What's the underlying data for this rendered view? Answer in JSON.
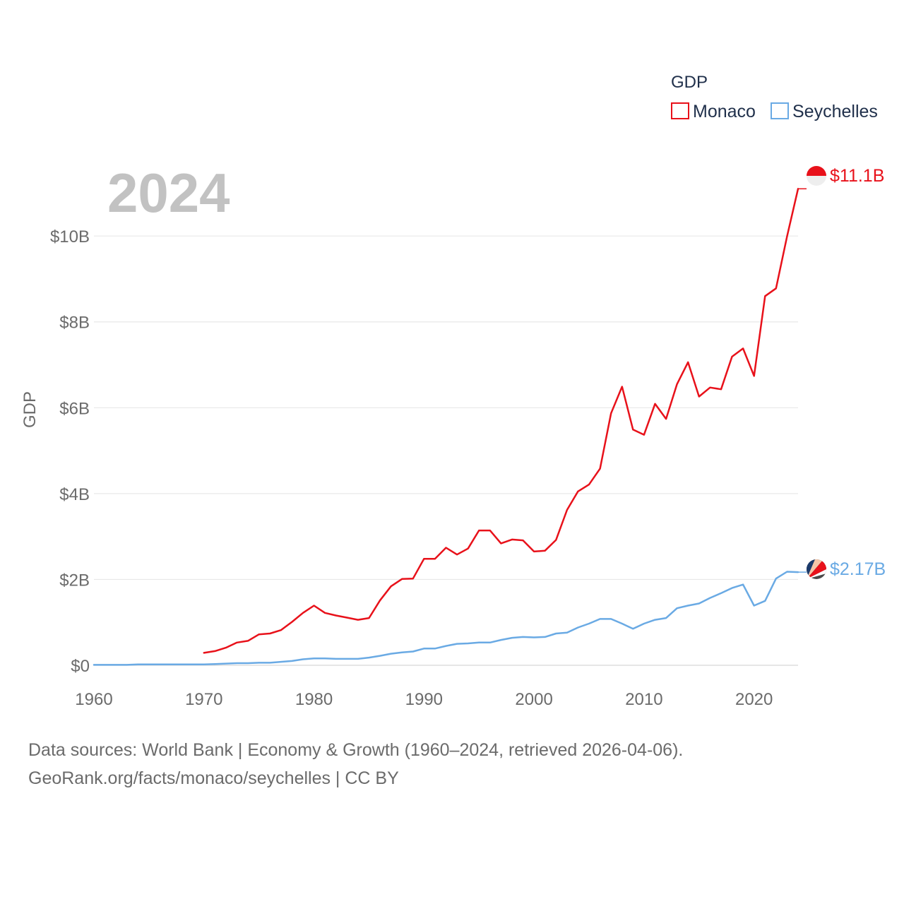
{
  "chart_data": {
    "type": "line",
    "year_label": "2024",
    "ylabel": "GDP",
    "legend_title": "GDP",
    "legend_position": "top-right",
    "x_ticks": [
      "1960",
      "1970",
      "1980",
      "1990",
      "2000",
      "2010",
      "2020"
    ],
    "x_tick_values": [
      1960,
      1970,
      1980,
      1990,
      2000,
      2010,
      2020
    ],
    "xlim": [
      1960,
      2024
    ],
    "y_ticks": [
      "$0",
      "$2B",
      "$4B",
      "$6B",
      "$8B",
      "$10B"
    ],
    "y_tick_values": [
      0,
      2,
      4,
      6,
      8,
      10
    ],
    "ylim": [
      0,
      11.5
    ],
    "grid": true,
    "series": [
      {
        "name": "Monaco",
        "color": "#e8111a",
        "end_label": "$11.1B",
        "x": [
          1970,
          1971,
          1972,
          1973,
          1974,
          1975,
          1976,
          1977,
          1978,
          1979,
          1980,
          1981,
          1982,
          1983,
          1984,
          1985,
          1986,
          1987,
          1988,
          1989,
          1990,
          1991,
          1992,
          1993,
          1994,
          1995,
          1996,
          1997,
          1998,
          1999,
          2000,
          2001,
          2002,
          2003,
          2004,
          2005,
          2006,
          2007,
          2008,
          2009,
          2010,
          2011,
          2012,
          2013,
          2014,
          2015,
          2016,
          2017,
          2018,
          2019,
          2020,
          2021,
          2022,
          2023,
          2024
        ],
        "values": [
          0.29,
          0.33,
          0.41,
          0.53,
          0.57,
          0.72,
          0.74,
          0.82,
          1.01,
          1.22,
          1.39,
          1.22,
          1.16,
          1.11,
          1.06,
          1.1,
          1.51,
          1.84,
          2.01,
          2.02,
          2.48,
          2.48,
          2.74,
          2.58,
          2.72,
          3.14,
          3.14,
          2.84,
          2.93,
          2.91,
          2.65,
          2.67,
          2.92,
          3.62,
          4.05,
          4.21,
          4.58,
          5.87,
          6.49,
          5.49,
          5.37,
          6.09,
          5.74,
          6.55,
          7.06,
          6.26,
          6.47,
          6.43,
          7.19,
          7.38,
          6.74,
          8.6,
          8.78,
          9.99,
          11.1
        ]
      },
      {
        "name": "Seychelles",
        "color": "#6aaae4",
        "end_label": "$2.17B",
        "x": [
          1960,
          1961,
          1962,
          1963,
          1964,
          1965,
          1966,
          1967,
          1968,
          1969,
          1970,
          1971,
          1972,
          1973,
          1974,
          1975,
          1976,
          1977,
          1978,
          1979,
          1980,
          1981,
          1982,
          1983,
          1984,
          1985,
          1986,
          1987,
          1988,
          1989,
          1990,
          1991,
          1992,
          1993,
          1994,
          1995,
          1996,
          1997,
          1998,
          1999,
          2000,
          2001,
          2002,
          2003,
          2004,
          2005,
          2006,
          2007,
          2008,
          2009,
          2010,
          2011,
          2012,
          2013,
          2014,
          2015,
          2016,
          2017,
          2018,
          2019,
          2020,
          2021,
          2022,
          2023,
          2024
        ],
        "values": [
          0.01,
          0.01,
          0.01,
          0.01,
          0.02,
          0.02,
          0.02,
          0.02,
          0.02,
          0.02,
          0.02,
          0.03,
          0.04,
          0.05,
          0.05,
          0.06,
          0.06,
          0.08,
          0.1,
          0.14,
          0.16,
          0.16,
          0.15,
          0.15,
          0.15,
          0.18,
          0.22,
          0.27,
          0.3,
          0.32,
          0.39,
          0.39,
          0.45,
          0.5,
          0.51,
          0.53,
          0.53,
          0.59,
          0.64,
          0.66,
          0.65,
          0.66,
          0.74,
          0.76,
          0.88,
          0.97,
          1.08,
          1.08,
          0.97,
          0.85,
          0.97,
          1.06,
          1.1,
          1.33,
          1.39,
          1.44,
          1.57,
          1.68,
          1.8,
          1.88,
          1.39,
          1.5,
          2.02,
          2.18,
          2.17
        ]
      }
    ]
  },
  "footer": {
    "line1": "Data sources: World Bank | Economy & Growth (1960–2024, retrieved 2026-04-06).",
    "line2": "GeoRank.org/facts/monaco/seychelles | CC BY"
  }
}
